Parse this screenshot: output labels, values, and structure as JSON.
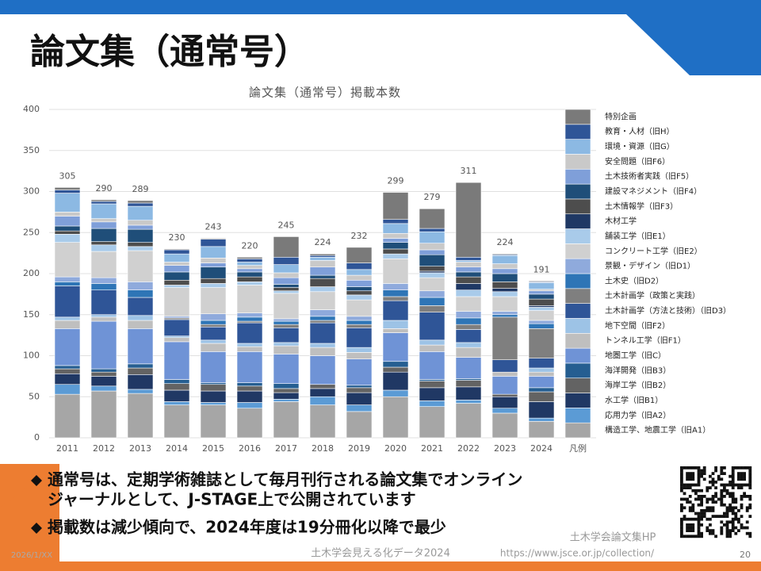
{
  "header": {
    "title": "論文集（通常号）"
  },
  "chart_data": {
    "type": "bar",
    "stacked": true,
    "title": "論文集（通常号）掲載本数",
    "categories": [
      "2011",
      "2012",
      "2013",
      "2014",
      "2015",
      "2016",
      "2017",
      "2018",
      "2019",
      "2020",
      "2021",
      "2022",
      "2023",
      "2024"
    ],
    "legend_label": "凡例",
    "ylim": [
      0,
      400
    ],
    "yticks": [
      0,
      50,
      100,
      150,
      200,
      250,
      300,
      350,
      400
    ],
    "grid": true,
    "totals": [
      305,
      290,
      289,
      230,
      243,
      220,
      245,
      224,
      232,
      299,
      279,
      311,
      224,
      191
    ],
    "series": [
      {
        "name": "構造工学、地震工学（旧A1）",
        "color": "#a6a6a6",
        "values": [
          53,
          57,
          54,
          40,
          40,
          36,
          44,
          40,
          32,
          50,
          38,
          42,
          30,
          20
        ]
      },
      {
        "name": "応用力学（旧A2）",
        "color": "#5b9bd5",
        "values": [
          12,
          6,
          5,
          4,
          3,
          7,
          3,
          10,
          8,
          8,
          7,
          4,
          6,
          4
        ]
      },
      {
        "name": "水工学（旧B1）",
        "color": "#203864",
        "values": [
          13,
          12,
          18,
          14,
          14,
          14,
          8,
          10,
          15,
          22,
          16,
          16,
          14,
          20
        ]
      },
      {
        "name": "海岸工学（旧B2）",
        "color": "#636363",
        "values": [
          6,
          5,
          8,
          8,
          8,
          6,
          5,
          5,
          6,
          6,
          8,
          8,
          3,
          12
        ]
      },
      {
        "name": "海洋開発（旧B3）",
        "color": "#255e91",
        "values": [
          4,
          4,
          5,
          5,
          2,
          4,
          6,
          0,
          3,
          7,
          2,
          2,
          0,
          5
        ]
      },
      {
        "name": "地圏工学（旧C）",
        "color": "#6f93d6",
        "values": [
          45,
          58,
          43,
          46,
          38,
          38,
          36,
          35,
          32,
          35,
          34,
          26,
          22,
          14
        ]
      },
      {
        "name": "トンネル工学（旧F1）",
        "color": "#bfbfbf",
        "values": [
          10,
          5,
          10,
          5,
          10,
          6,
          10,
          10,
          8,
          5,
          8,
          12,
          5,
          5
        ]
      },
      {
        "name": "地下空間（旧F2）",
        "color": "#9dc3e6",
        "values": [
          4,
          3,
          6,
          2,
          4,
          4,
          4,
          5,
          6,
          10,
          6,
          6,
          0,
          5
        ]
      },
      {
        "name": "土木計画学（方法と技術）（旧D3）",
        "color": "#2f5597",
        "values": [
          38,
          30,
          22,
          20,
          16,
          25,
          18,
          25,
          24,
          24,
          34,
          16,
          15,
          12
        ]
      },
      {
        "name": "土木計画学（政策と実践）",
        "color": "#7f7f7f",
        "values": [
          0,
          0,
          0,
          2,
          3,
          2,
          4,
          3,
          4,
          5,
          8,
          6,
          52,
          36
        ]
      },
      {
        "name": "土木史（旧D2）",
        "color": "#2e75b6",
        "values": [
          5,
          8,
          9,
          0,
          5,
          5,
          4,
          5,
          5,
          8,
          10,
          8,
          3,
          6
        ]
      },
      {
        "name": "景観・デザイン（旧D1）",
        "color": "#8faadc",
        "values": [
          6,
          7,
          10,
          2,
          8,
          5,
          3,
          8,
          5,
          8,
          8,
          8,
          4,
          4
        ]
      },
      {
        "name": "コンクリート工学（旧E2）",
        "color": "#d0d0d0",
        "values": [
          42,
          32,
          38,
          35,
          32,
          34,
          31,
          22,
          20,
          30,
          16,
          18,
          18,
          12
        ]
      },
      {
        "name": "舗装工学（旧E1）",
        "color": "#a9cbea",
        "values": [
          10,
          8,
          5,
          3,
          5,
          4,
          3,
          6,
          6,
          6,
          6,
          8,
          6,
          4
        ]
      },
      {
        "name": "木材工学",
        "color": "#1f3864",
        "values": [
          0,
          0,
          0,
          0,
          0,
          0,
          0,
          0,
          0,
          0,
          2,
          8,
          4,
          2
        ]
      },
      {
        "name": "土木情報学（旧F3）",
        "color": "#4d4d4d",
        "values": [
          4,
          4,
          5,
          6,
          6,
          6,
          4,
          10,
          5,
          6,
          6,
          8,
          8,
          8
        ]
      },
      {
        "name": "建設マネジメント（旧F4）",
        "color": "#1f4e79",
        "values": [
          6,
          16,
          16,
          10,
          14,
          6,
          4,
          4,
          5,
          8,
          14,
          6,
          10,
          6
        ]
      },
      {
        "name": "土木技術者実践（旧F5）",
        "color": "#7f9fd9",
        "values": [
          12,
          8,
          5,
          8,
          5,
          4,
          8,
          10,
          8,
          5,
          6,
          6,
          6,
          4
        ]
      },
      {
        "name": "安全問題（旧F6）",
        "color": "#c9c9c9",
        "values": [
          5,
          4,
          6,
          4,
          6,
          4,
          6,
          8,
          6,
          6,
          8,
          6,
          6,
          2
        ]
      },
      {
        "name": "環境・資源（旧G）",
        "color": "#8cb9e3",
        "values": [
          23,
          18,
          17,
          10,
          14,
          4,
          10,
          4,
          7,
          12,
          14,
          2,
          10,
          8
        ]
      },
      {
        "name": "教育・人材（旧H）",
        "color": "#2f5597",
        "values": [
          4,
          3,
          4,
          5,
          9,
          4,
          9,
          2,
          8,
          5,
          4,
          4,
          1,
          1
        ]
      },
      {
        "name": "特別企画",
        "color": "#7a7a7a",
        "values": [
          3,
          2,
          3,
          1,
          1,
          2,
          25,
          2,
          19,
          33,
          24,
          91,
          1,
          1
        ]
      }
    ]
  },
  "bullets": [
    {
      "lines": [
        "通常号は、定期学術雑誌として毎月刊行される論文集でオンライン",
        "ジャーナルとして、J-STAGE上で公開されています"
      ]
    },
    {
      "lines": [
        "掲載数は減少傾向で、2024年度は19分冊化以降で最少"
      ]
    }
  ],
  "link": {
    "label": "土木学会論文集HP",
    "url": "https://www.jsce.or.jp/collection/"
  },
  "footer": {
    "date": "2026/1/XX",
    "center": "土木学会見える化データ2024",
    "page": "20"
  }
}
